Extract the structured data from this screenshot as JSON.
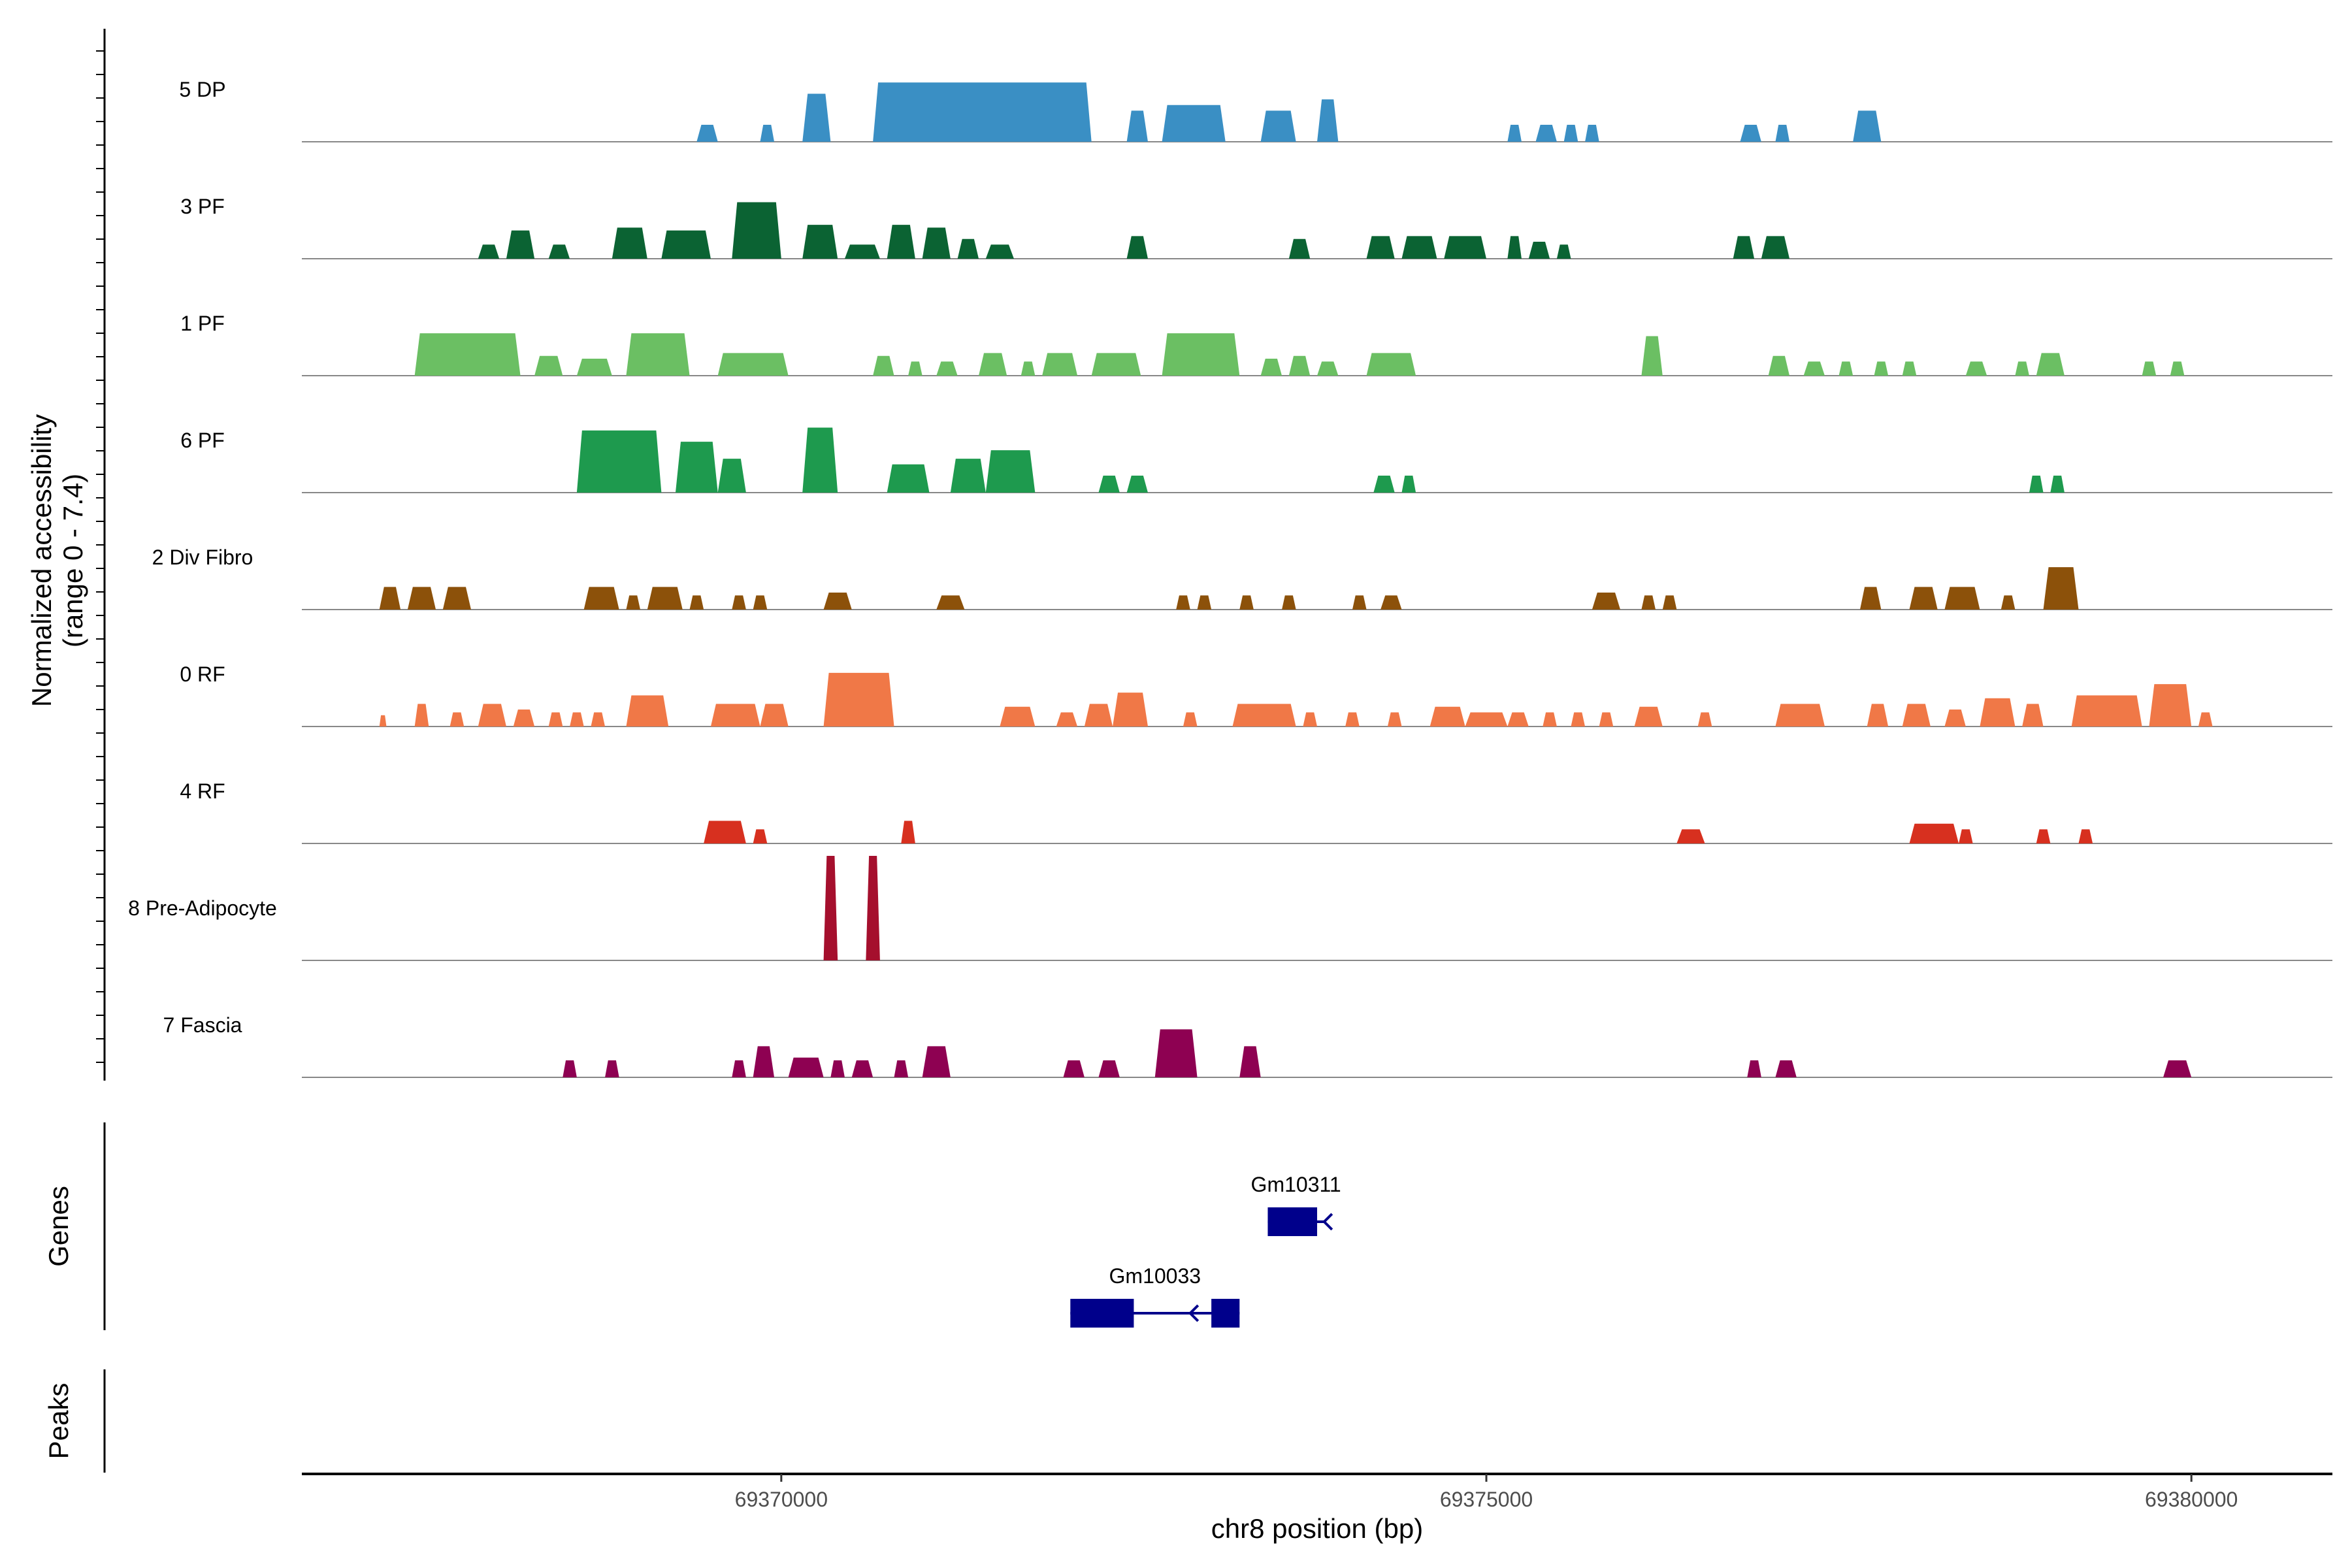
{
  "chart_data": {
    "type": "area",
    "title": "",
    "ylabel_line1": "Normalized accessibility",
    "ylabel_line2": "(range 0 - 7.4)",
    "xlabel": "chr8 position (bp)",
    "xlim": [
      69366600,
      69381000
    ],
    "ylim": [
      0,
      7.4
    ],
    "x_ticks": [
      69370000,
      69375000,
      69380000
    ],
    "x_tick_labels": [
      "69370000",
      "69375000",
      "69380000"
    ],
    "genes_label": "Genes",
    "peaks_label": "Peaks",
    "series": [
      {
        "name": "5 DP",
        "color": "#3A8FC4",
        "segments": [
          [
            69369400,
            69369550,
            1.2
          ],
          [
            69369850,
            69369950,
            1.2
          ],
          [
            69370150,
            69370350,
            3.4
          ],
          [
            69370650,
            69372200,
            4.2
          ],
          [
            69372450,
            69372600,
            2.2
          ],
          [
            69372700,
            69373150,
            2.6
          ],
          [
            69373400,
            69373650,
            2.2
          ],
          [
            69373800,
            69373950,
            3.0
          ],
          [
            69375150,
            69375250,
            1.2
          ],
          [
            69375350,
            69375500,
            1.2
          ],
          [
            69375550,
            69375650,
            1.2
          ],
          [
            69375700,
            69375800,
            1.2
          ],
          [
            69376800,
            69376950,
            1.2
          ],
          [
            69377050,
            69377150,
            1.2
          ],
          [
            69377600,
            69377800,
            2.2
          ]
        ]
      },
      {
        "name": "3 PF",
        "color": "#0B6333",
        "segments": [
          [
            69367850,
            69368000,
            1.0
          ],
          [
            69368050,
            69368250,
            2.0
          ],
          [
            69368350,
            69368500,
            1.0
          ],
          [
            69368800,
            69369050,
            2.2
          ],
          [
            69369150,
            69369500,
            2.0
          ],
          [
            69369650,
            69370000,
            4.0
          ],
          [
            69370150,
            69370400,
            2.4
          ],
          [
            69370450,
            69370700,
            1.0
          ],
          [
            69370750,
            69370950,
            2.4
          ],
          [
            69371000,
            69371200,
            2.2
          ],
          [
            69371250,
            69371400,
            1.4
          ],
          [
            69371450,
            69371650,
            1.0
          ],
          [
            69372450,
            69372600,
            1.6
          ],
          [
            69373600,
            69373750,
            1.4
          ],
          [
            69374150,
            69374350,
            1.6
          ],
          [
            69374400,
            69374650,
            1.6
          ],
          [
            69374700,
            69375000,
            1.6
          ],
          [
            69375150,
            69375250,
            1.6
          ],
          [
            69375300,
            69375450,
            1.2
          ],
          [
            69375500,
            69375600,
            1.0
          ],
          [
            69376750,
            69376900,
            1.6
          ],
          [
            69376950,
            69377150,
            1.6
          ]
        ]
      },
      {
        "name": "1 PF",
        "color": "#6BBF63",
        "segments": [
          [
            69367400,
            69368150,
            3.0
          ],
          [
            69368250,
            69368450,
            1.4
          ],
          [
            69368550,
            69368800,
            1.2
          ],
          [
            69368900,
            69369350,
            3.0
          ],
          [
            69369550,
            69370050,
            1.6
          ],
          [
            69370650,
            69370800,
            1.4
          ],
          [
            69370900,
            69371000,
            1.0
          ],
          [
            69371100,
            69371250,
            1.0
          ],
          [
            69371400,
            69371600,
            1.6
          ],
          [
            69371700,
            69371800,
            1.0
          ],
          [
            69371850,
            69372100,
            1.6
          ],
          [
            69372200,
            69372550,
            1.6
          ],
          [
            69372700,
            69373250,
            3.0
          ],
          [
            69373400,
            69373550,
            1.2
          ],
          [
            69373600,
            69373750,
            1.4
          ],
          [
            69373800,
            69373950,
            1.0
          ],
          [
            69374150,
            69374500,
            1.6
          ],
          [
            69376100,
            69376250,
            2.8
          ],
          [
            69377000,
            69377150,
            1.4
          ],
          [
            69377250,
            69377400,
            1.0
          ],
          [
            69377500,
            69377600,
            1.0
          ],
          [
            69377750,
            69377850,
            1.0
          ],
          [
            69377950,
            69378050,
            1.0
          ],
          [
            69378400,
            69378550,
            1.0
          ],
          [
            69378750,
            69378850,
            1.0
          ],
          [
            69378900,
            69379100,
            1.6
          ],
          [
            69379650,
            69379750,
            1.0
          ],
          [
            69379850,
            69379950,
            1.0
          ]
        ]
      },
      {
        "name": "6 PF",
        "color": "#1E9A4E",
        "segments": [
          [
            69368550,
            69369150,
            4.4
          ],
          [
            69369250,
            69369550,
            3.6
          ],
          [
            69369550,
            69369750,
            2.4
          ],
          [
            69370150,
            69370400,
            4.6
          ],
          [
            69370750,
            69371050,
            2.0
          ],
          [
            69371200,
            69371450,
            2.4
          ],
          [
            69371450,
            69371800,
            3.0
          ],
          [
            69372250,
            69372400,
            1.2
          ],
          [
            69372450,
            69372600,
            1.2
          ],
          [
            69374200,
            69374350,
            1.2
          ],
          [
            69374400,
            69374500,
            1.2
          ],
          [
            69378850,
            69378950,
            1.2
          ],
          [
            69379000,
            69379100,
            1.2
          ]
        ]
      },
      {
        "name": "2 Div Fibro",
        "color": "#8C510A",
        "segments": [
          [
            69367150,
            69367300,
            1.6
          ],
          [
            69367350,
            69367550,
            1.6
          ],
          [
            69367600,
            69367800,
            1.6
          ],
          [
            69368600,
            69368850,
            1.6
          ],
          [
            69368900,
            69369000,
            1.0
          ],
          [
            69369050,
            69369300,
            1.6
          ],
          [
            69369350,
            69369450,
            1.0
          ],
          [
            69369650,
            69369750,
            1.0
          ],
          [
            69369800,
            69369900,
            1.0
          ],
          [
            69370300,
            69370500,
            1.2
          ],
          [
            69371100,
            69371300,
            1.0
          ],
          [
            69372800,
            69372900,
            1.0
          ],
          [
            69372950,
            69373050,
            1.0
          ],
          [
            69373250,
            69373350,
            1.0
          ],
          [
            69373550,
            69373650,
            1.0
          ],
          [
            69374050,
            69374150,
            1.0
          ],
          [
            69374250,
            69374400,
            1.0
          ],
          [
            69375750,
            69375950,
            1.2
          ],
          [
            69376100,
            69376200,
            1.0
          ],
          [
            69376250,
            69376350,
            1.0
          ],
          [
            69377650,
            69377800,
            1.6
          ],
          [
            69378000,
            69378200,
            1.6
          ],
          [
            69378250,
            69378500,
            1.6
          ],
          [
            69378650,
            69378750,
            1.0
          ],
          [
            69378950,
            69379200,
            3.0
          ]
        ]
      },
      {
        "name": "0 RF",
        "color": "#F07847",
        "segments": [
          [
            69367150,
            69367200,
            0.8
          ],
          [
            69367400,
            69367500,
            1.6
          ],
          [
            69367650,
            69367750,
            1.0
          ],
          [
            69367850,
            69368050,
            1.6
          ],
          [
            69368100,
            69368250,
            1.2
          ],
          [
            69368350,
            69368450,
            1.0
          ],
          [
            69368500,
            69368600,
            1.0
          ],
          [
            69368650,
            69368750,
            1.0
          ],
          [
            69368900,
            69369200,
            2.2
          ],
          [
            69369500,
            69369850,
            1.6
          ],
          [
            69369850,
            69370050,
            1.6
          ],
          [
            69370300,
            69370800,
            3.8
          ],
          [
            69371550,
            69371800,
            1.4
          ],
          [
            69371950,
            69372100,
            1.0
          ],
          [
            69372150,
            69372350,
            1.6
          ],
          [
            69372350,
            69372600,
            2.4
          ],
          [
            69372850,
            69372950,
            1.0
          ],
          [
            69373200,
            69373650,
            1.6
          ],
          [
            69373700,
            69373800,
            1.0
          ],
          [
            69374000,
            69374100,
            1.0
          ],
          [
            69374300,
            69374400,
            1.0
          ],
          [
            69374600,
            69374850,
            1.4
          ],
          [
            69374850,
            69375150,
            1.0
          ],
          [
            69375150,
            69375300,
            1.0
          ],
          [
            69375400,
            69375500,
            1.0
          ],
          [
            69375600,
            69375700,
            1.0
          ],
          [
            69375800,
            69375900,
            1.0
          ],
          [
            69376050,
            69376250,
            1.4
          ],
          [
            69376500,
            69376600,
            1.0
          ],
          [
            69377050,
            69377400,
            1.6
          ],
          [
            69377700,
            69377850,
            1.6
          ],
          [
            69377950,
            69378150,
            1.6
          ],
          [
            69378250,
            69378400,
            1.2
          ],
          [
            69378500,
            69378750,
            2.0
          ],
          [
            69378800,
            69378950,
            1.6
          ],
          [
            69379150,
            69379650,
            2.2
          ],
          [
            69379700,
            69380000,
            3.0
          ],
          [
            69380050,
            69380150,
            1.0
          ]
        ]
      },
      {
        "name": "4 RF",
        "color": "#D7301F",
        "segments": [
          [
            69369450,
            69369750,
            1.6
          ],
          [
            69369800,
            69369900,
            1.0
          ],
          [
            69370850,
            69370950,
            1.6
          ],
          [
            69376350,
            69376550,
            1.0
          ],
          [
            69378000,
            69378350,
            1.4
          ],
          [
            69378350,
            69378450,
            1.0
          ],
          [
            69378900,
            69379000,
            1.0
          ],
          [
            69379200,
            69379300,
            1.0
          ]
        ]
      },
      {
        "name": "8 Pre-Adipocyte",
        "color": "#A50F2D",
        "segments": [
          [
            69370300,
            69370400,
            7.4
          ],
          [
            69370600,
            69370700,
            7.4
          ]
        ]
      },
      {
        "name": "7 Fascia",
        "color": "#8E0152",
        "segments": [
          [
            69368450,
            69368550,
            1.2
          ],
          [
            69368750,
            69368850,
            1.2
          ],
          [
            69369650,
            69369750,
            1.2
          ],
          [
            69369800,
            69369950,
            2.2
          ],
          [
            69370050,
            69370300,
            1.4
          ],
          [
            69370350,
            69370450,
            1.2
          ],
          [
            69370500,
            69370650,
            1.2
          ],
          [
            69370800,
            69370900,
            1.2
          ],
          [
            69371000,
            69371200,
            2.2
          ],
          [
            69372000,
            69372150,
            1.2
          ],
          [
            69372250,
            69372400,
            1.2
          ],
          [
            69372650,
            69372950,
            3.4
          ],
          [
            69373250,
            69373400,
            2.2
          ],
          [
            69376850,
            69376950,
            1.2
          ],
          [
            69377050,
            69377200,
            1.2
          ],
          [
            69379800,
            69380000,
            1.2
          ]
        ]
      }
    ],
    "genes": [
      {
        "name": "Gm10311",
        "row": 0,
        "start": 69373450,
        "end": 69373850,
        "arrow_pos": 69373850,
        "exons": [
          [
            69373450,
            69373800
          ]
        ]
      },
      {
        "name": "Gm10033",
        "row": 1,
        "start": 69372050,
        "end": 69373250,
        "arrow_pos": 69372900,
        "exons": [
          [
            69372050,
            69372500
          ],
          [
            69373050,
            69373250
          ]
        ]
      }
    ]
  }
}
